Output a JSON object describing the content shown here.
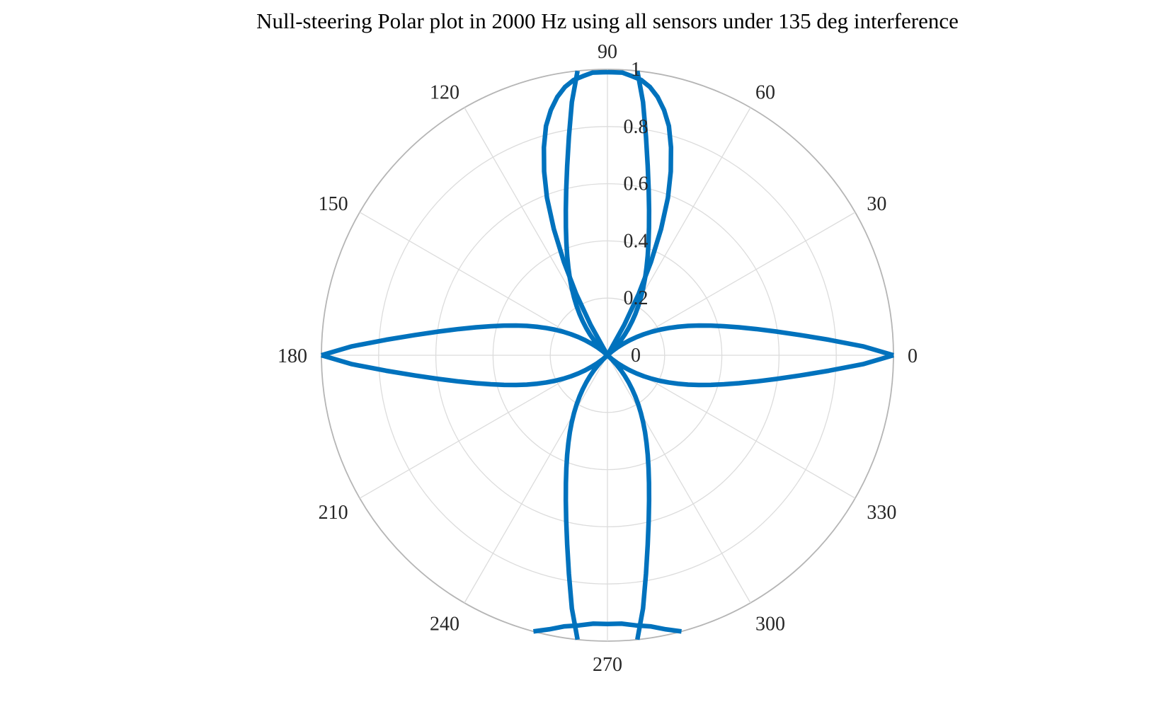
{
  "chart_data": {
    "type": "polar-line",
    "title": "Null-steering Polar plot in 2000 Hz using all sensors under 135 deg interference",
    "theta_ticks": [
      "0",
      "30",
      "60",
      "90",
      "120",
      "150",
      "180",
      "210",
      "240",
      "270",
      "300",
      "330"
    ],
    "theta_tick_values_deg": [
      0,
      30,
      60,
      90,
      120,
      150,
      180,
      210,
      240,
      270,
      300,
      330
    ],
    "r_ticks": [
      "0",
      "0.2",
      "0.4",
      "0.6",
      "0.8",
      "1"
    ],
    "r_tick_values": [
      0,
      0.2,
      0.4,
      0.6,
      0.8,
      1
    ],
    "rlim": [
      0,
      1
    ],
    "grid": true,
    "series_color": "#0072BD",
    "series": [
      {
        "clipped_at_r_max": true,
        "points_deg_r": [
          [
            0,
            1.0
          ],
          [
            2,
            0.894
          ],
          [
            4,
            0.776
          ],
          [
            6,
            0.677
          ],
          [
            8,
            0.596
          ],
          [
            10,
            0.528
          ],
          [
            12,
            0.47
          ],
          [
            14,
            0.42
          ],
          [
            16,
            0.376
          ],
          [
            18,
            0.336
          ],
          [
            20,
            0.3
          ],
          [
            22,
            0.266
          ],
          [
            24,
            0.234
          ],
          [
            26,
            0.204
          ],
          [
            28,
            0.175
          ],
          [
            30,
            0.147
          ],
          [
            32,
            0.12
          ],
          [
            34,
            0.094
          ],
          [
            36,
            0.069
          ],
          [
            38,
            0.045
          ],
          [
            40,
            0.022
          ],
          [
            42,
            0.0
          ],
          [
            44,
            0.022
          ],
          [
            46,
            0.045
          ],
          [
            48,
            0.069
          ],
          [
            50,
            0.094
          ],
          [
            52,
            0.12
          ],
          [
            54,
            0.147
          ],
          [
            56,
            0.175
          ],
          [
            58,
            0.204
          ],
          [
            60,
            0.234
          ],
          [
            62,
            0.266
          ],
          [
            64,
            0.3
          ],
          [
            66,
            0.336
          ],
          [
            68,
            0.376
          ],
          [
            70,
            0.42
          ],
          [
            72,
            0.47
          ],
          [
            74,
            0.528
          ],
          [
            76,
            0.596
          ],
          [
            78,
            0.677
          ],
          [
            80,
            0.776
          ],
          [
            82,
            0.894
          ],
          [
            84,
            1.0
          ]
        ]
      },
      {
        "points_deg_r": [
          [
            59,
            0.0
          ],
          [
            61,
            0.12
          ],
          [
            63,
            0.24
          ],
          [
            65,
            0.36
          ],
          [
            67,
            0.48
          ],
          [
            69,
            0.59
          ],
          [
            71,
            0.68
          ],
          [
            73,
            0.76
          ],
          [
            75,
            0.83
          ],
          [
            77,
            0.88
          ],
          [
            79,
            0.92
          ],
          [
            81,
            0.95
          ],
          [
            83,
            0.97
          ],
          [
            85,
            0.98
          ],
          [
            87,
            0.99
          ],
          [
            89,
            0.99
          ],
          [
            90,
            0.99
          ],
          [
            91,
            0.99
          ],
          [
            93,
            0.99
          ],
          [
            95,
            0.98
          ],
          [
            97,
            0.97
          ],
          [
            99,
            0.95
          ],
          [
            101,
            0.92
          ],
          [
            103,
            0.88
          ],
          [
            105,
            0.83
          ],
          [
            107,
            0.76
          ],
          [
            109,
            0.68
          ],
          [
            111,
            0.59
          ],
          [
            113,
            0.48
          ],
          [
            115,
            0.36
          ],
          [
            117,
            0.24
          ],
          [
            119,
            0.12
          ],
          [
            121,
            0.0
          ]
        ]
      },
      {
        "clipped_at_r_max": true,
        "points_deg_r": [
          [
            96,
            1.0
          ],
          [
            98,
            0.894
          ],
          [
            100,
            0.776
          ],
          [
            102,
            0.677
          ],
          [
            104,
            0.596
          ],
          [
            106,
            0.528
          ],
          [
            108,
            0.47
          ],
          [
            110,
            0.42
          ],
          [
            112,
            0.376
          ],
          [
            114,
            0.336
          ],
          [
            116,
            0.3
          ],
          [
            118,
            0.266
          ],
          [
            120,
            0.234
          ],
          [
            122,
            0.204
          ],
          [
            124,
            0.175
          ],
          [
            126,
            0.147
          ],
          [
            128,
            0.12
          ],
          [
            130,
            0.094
          ],
          [
            132,
            0.069
          ],
          [
            134,
            0.045
          ],
          [
            136,
            0.022
          ],
          [
            138,
            0.0
          ],
          [
            140,
            0.022
          ],
          [
            142,
            0.045
          ],
          [
            144,
            0.069
          ],
          [
            146,
            0.094
          ],
          [
            148,
            0.12
          ],
          [
            150,
            0.147
          ],
          [
            152,
            0.175
          ],
          [
            154,
            0.204
          ],
          [
            156,
            0.234
          ],
          [
            158,
            0.266
          ],
          [
            160,
            0.3
          ],
          [
            162,
            0.336
          ],
          [
            164,
            0.376
          ],
          [
            166,
            0.42
          ],
          [
            168,
            0.47
          ],
          [
            170,
            0.528
          ],
          [
            172,
            0.596
          ],
          [
            174,
            0.677
          ],
          [
            176,
            0.776
          ],
          [
            178,
            0.894
          ],
          [
            180,
            1.0
          ]
        ]
      },
      {
        "clipped_at_r_max": true,
        "points_deg_r": [
          [
            180,
            1.0
          ],
          [
            182,
            0.894
          ],
          [
            184,
            0.776
          ],
          [
            186,
            0.677
          ],
          [
            188,
            0.596
          ],
          [
            190,
            0.528
          ],
          [
            192,
            0.47
          ],
          [
            194,
            0.42
          ],
          [
            196,
            0.376
          ],
          [
            198,
            0.336
          ],
          [
            200,
            0.3
          ],
          [
            202,
            0.266
          ],
          [
            204,
            0.234
          ],
          [
            206,
            0.204
          ],
          [
            208,
            0.175
          ],
          [
            210,
            0.147
          ],
          [
            212,
            0.12
          ],
          [
            214,
            0.094
          ],
          [
            216,
            0.069
          ],
          [
            218,
            0.045
          ],
          [
            220,
            0.022
          ],
          [
            222,
            0.0
          ],
          [
            224,
            0.022
          ],
          [
            226,
            0.045
          ],
          [
            228,
            0.069
          ],
          [
            230,
            0.094
          ],
          [
            232,
            0.12
          ],
          [
            234,
            0.147
          ],
          [
            236,
            0.175
          ],
          [
            238,
            0.204
          ],
          [
            240,
            0.234
          ],
          [
            242,
            0.266
          ],
          [
            244,
            0.3
          ],
          [
            246,
            0.336
          ],
          [
            248,
            0.376
          ],
          [
            250,
            0.42
          ],
          [
            252,
            0.47
          ],
          [
            254,
            0.528
          ],
          [
            256,
            0.596
          ],
          [
            258,
            0.677
          ],
          [
            260,
            0.776
          ],
          [
            262,
            0.894
          ],
          [
            264,
            1.0
          ]
        ]
      },
      {
        "clipped_at_r_max": true,
        "points_deg_r": [
          [
            255,
            1.0
          ],
          [
            258,
            0.98
          ],
          [
            261,
            0.96
          ],
          [
            264,
            0.95
          ],
          [
            267,
            0.94
          ],
          [
            270,
            0.94
          ],
          [
            273,
            0.94
          ],
          [
            276,
            0.95
          ],
          [
            279,
            0.96
          ],
          [
            282,
            0.98
          ],
          [
            285,
            1.0
          ]
        ]
      },
      {
        "clipped_at_r_max": true,
        "points_deg_r": [
          [
            276,
            1.0
          ],
          [
            278,
            0.894
          ],
          [
            280,
            0.776
          ],
          [
            282,
            0.677
          ],
          [
            284,
            0.596
          ],
          [
            286,
            0.528
          ],
          [
            288,
            0.47
          ],
          [
            290,
            0.42
          ],
          [
            292,
            0.376
          ],
          [
            294,
            0.336
          ],
          [
            296,
            0.3
          ],
          [
            298,
            0.266
          ],
          [
            300,
            0.234
          ],
          [
            302,
            0.204
          ],
          [
            304,
            0.175
          ],
          [
            306,
            0.147
          ],
          [
            308,
            0.12
          ],
          [
            310,
            0.094
          ],
          [
            312,
            0.069
          ],
          [
            314,
            0.045
          ],
          [
            316,
            0.022
          ],
          [
            318,
            0.0
          ],
          [
            320,
            0.022
          ],
          [
            322,
            0.045
          ],
          [
            324,
            0.069
          ],
          [
            326,
            0.094
          ],
          [
            328,
            0.12
          ],
          [
            330,
            0.147
          ],
          [
            332,
            0.175
          ],
          [
            334,
            0.204
          ],
          [
            336,
            0.234
          ],
          [
            338,
            0.266
          ],
          [
            340,
            0.3
          ],
          [
            342,
            0.336
          ],
          [
            344,
            0.376
          ],
          [
            346,
            0.42
          ],
          [
            348,
            0.47
          ],
          [
            350,
            0.528
          ],
          [
            352,
            0.596
          ],
          [
            354,
            0.677
          ],
          [
            356,
            0.776
          ],
          [
            358,
            0.894
          ],
          [
            360,
            1.0
          ]
        ]
      }
    ]
  }
}
